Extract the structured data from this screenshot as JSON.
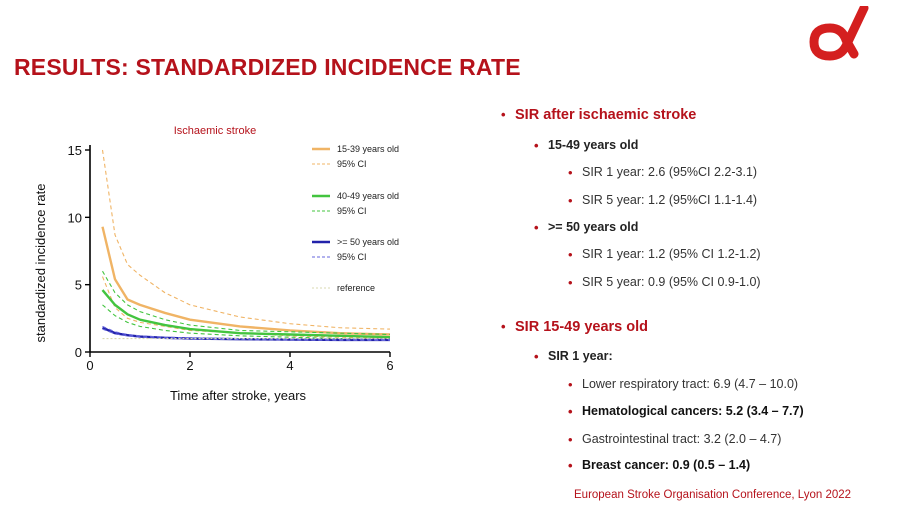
{
  "slide": {
    "title": "RESULTS: STANDARDIZED INCIDENCE RATE",
    "footer": "European Stroke Organisation Conference, Lyon 2022",
    "accent_color": "#b5121b",
    "logo_icon": "alpha-logo"
  },
  "bullets": {
    "section1": {
      "heading": "SIR after ischaemic stroke",
      "group1": {
        "label": "15-49 years old",
        "items": [
          "SIR 1 year: 2.6 (95%CI 2.2-3.1)",
          "SIR 5 year: 1.2 (95%CI 1.1-1.4)"
        ]
      },
      "group2": {
        "label": ">= 50 years old",
        "items": [
          " SIR 1 year: 1.2 (95% CI 1.2-1.2)",
          "SIR 5 year: 0.9 (95% CI 0.9-1.0)"
        ]
      }
    },
    "section2": {
      "heading": "SIR 15-49 years old",
      "group1": {
        "label": "SIR 1 year:",
        "items": [
          "Lower respiratory tract: 6.9 (4.7 – 10.0)",
          "Hematological cancers: 5.2 (3.4 – 7.7)",
          "Gastrointestinal tract: 3.2 (2.0 – 4.7)",
          "Breast cancer: 0.9 (0.5 – 1.4)"
        ]
      }
    }
  },
  "chart_data": {
    "type": "line",
    "title": "Ischaemic stroke",
    "xlabel": "Time after stroke, years",
    "ylabel": "standardized incidence rate",
    "xlim": [
      0,
      6
    ],
    "ylim": [
      0,
      15
    ],
    "xticks": [
      0,
      2,
      4,
      6
    ],
    "yticks": [
      0,
      5,
      10,
      15
    ],
    "x": [
      0.25,
      0.5,
      0.75,
      1,
      1.5,
      2,
      3,
      4,
      5,
      6
    ],
    "legend_position": "top-right",
    "series": [
      {
        "name": "15-39 years old",
        "color": "#f0b465",
        "style": "solid",
        "values": [
          9.3,
          5.4,
          3.9,
          3.5,
          2.9,
          2.4,
          1.9,
          1.6,
          1.4,
          1.3
        ]
      },
      {
        "name": "95% CI",
        "color": "#f0b465",
        "style": "dashed",
        "values": [
          15.0,
          8.7,
          6.5,
          5.7,
          4.4,
          3.5,
          2.6,
          2.1,
          1.8,
          1.7
        ]
      },
      {
        "name": "",
        "color": "#f0b465",
        "style": "dashed",
        "values": [
          5.6,
          3.3,
          2.5,
          2.2,
          1.9,
          1.6,
          1.4,
          1.2,
          1.1,
          1.0
        ]
      },
      {
        "name": "40-49 years old",
        "color": "#43c43f",
        "style": "solid",
        "values": [
          4.6,
          3.5,
          2.8,
          2.4,
          2.0,
          1.7,
          1.4,
          1.3,
          1.2,
          1.1
        ]
      },
      {
        "name": "95% CI",
        "color": "#43c43f",
        "style": "dashed",
        "values": [
          6.0,
          4.4,
          3.5,
          3.0,
          2.4,
          2.0,
          1.6,
          1.5,
          1.4,
          1.3
        ]
      },
      {
        "name": "",
        "color": "#43c43f",
        "style": "dashed",
        "values": [
          3.5,
          2.7,
          2.2,
          1.9,
          1.6,
          1.4,
          1.2,
          1.1,
          1.0,
          0.9
        ]
      },
      {
        "name": ">= 50 years old",
        "color": "#2222aa",
        "style": "solid",
        "values": [
          1.8,
          1.4,
          1.25,
          1.15,
          1.05,
          1.0,
          0.95,
          0.92,
          0.9,
          0.9
        ]
      },
      {
        "name": "95% CI",
        "color": "#6666dd",
        "style": "dashed",
        "values": [
          1.9,
          1.5,
          1.3,
          1.2,
          1.1,
          1.05,
          1.0,
          0.96,
          0.94,
          0.93
        ]
      },
      {
        "name": "",
        "color": "#6666dd",
        "style": "dashed",
        "values": [
          1.7,
          1.35,
          1.2,
          1.1,
          1.0,
          0.96,
          0.92,
          0.89,
          0.87,
          0.86
        ]
      },
      {
        "name": "reference",
        "color": "#d8d8b0",
        "style": "dotted",
        "values": [
          1,
          1,
          1,
          1,
          1,
          1,
          1,
          1,
          1,
          1
        ]
      }
    ]
  }
}
